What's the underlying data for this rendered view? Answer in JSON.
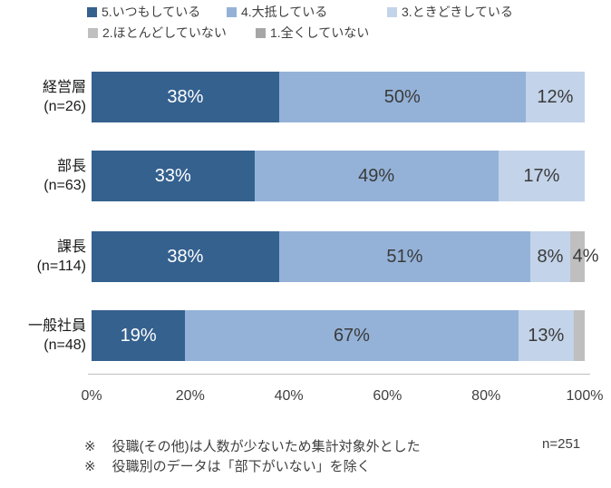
{
  "colors": {
    "s5": "#35618F",
    "s4": "#94B2D8",
    "s3": "#C3D3E9",
    "s2": "#BFBFBF",
    "s1": "#A6A6A6",
    "label_light": "#FFFFFF",
    "label_dark": "#3A3A3A",
    "axis_line": "#BFBFBF",
    "text": "#404040"
  },
  "legend": {
    "rows": [
      [
        {
          "key": "s5",
          "label": "5.いつもしている"
        },
        {
          "key": "s4",
          "label": "4.大抵している"
        },
        {
          "key": "s3",
          "label": "3.ときどきしている"
        }
      ],
      [
        {
          "key": "s2",
          "label": "2.ほとんどしていない"
        },
        {
          "key": "s1",
          "label": "1.全くしていない"
        }
      ]
    ]
  },
  "chart_data": {
    "type": "bar",
    "orientation": "horizontal-stacked",
    "xlim": [
      0,
      100
    ],
    "x_ticks": [
      "0%",
      "20%",
      "40%",
      "60%",
      "80%",
      "100%"
    ],
    "series_names": [
      "5.いつもしている",
      "4.大抵している",
      "3.ときどきしている",
      "2.ほとんどしていない",
      "1.全くしていない"
    ],
    "rows": [
      {
        "category": "経営層",
        "n_label": "(n=26)",
        "segments": [
          {
            "series": "5.いつもしている",
            "key": "s5",
            "value": 38,
            "label": "38%",
            "width": 38,
            "text": "light"
          },
          {
            "series": "4.大抵している",
            "key": "s4",
            "value": 50,
            "label": "50%",
            "width": 50,
            "text": "dark"
          },
          {
            "series": "3.ときどきしている",
            "key": "s3",
            "value": 12,
            "label": "12%",
            "width": 12,
            "text": "dark"
          }
        ]
      },
      {
        "category": "部長",
        "n_label": "(n=63)",
        "segments": [
          {
            "series": "5.いつもしている",
            "key": "s5",
            "value": 33,
            "label": "33%",
            "width": 33,
            "text": "light"
          },
          {
            "series": "4.大抵している",
            "key": "s4",
            "value": 49,
            "label": "49%",
            "width": 49.5,
            "text": "dark"
          },
          {
            "series": "3.ときどきしている",
            "key": "s3",
            "value": 17,
            "label": "17%",
            "width": 17.5,
            "text": "dark"
          }
        ]
      },
      {
        "category": "課長",
        "n_label": "(n=114)",
        "segments": [
          {
            "series": "5.いつもしている",
            "key": "s5",
            "value": 38,
            "label": "38%",
            "width": 38,
            "text": "light"
          },
          {
            "series": "4.大抵している",
            "key": "s4",
            "value": 51,
            "label": "51%",
            "width": 51,
            "text": "dark"
          },
          {
            "series": "3.ときどきしている",
            "key": "s3",
            "value": 8,
            "label": "8%",
            "width": 8,
            "text": "dark"
          },
          {
            "series": "2.ほとんどしていない",
            "key": "s2",
            "value": 4,
            "label": "4%",
            "width": 3,
            "text": "dark",
            "label_outside": true
          }
        ]
      },
      {
        "category": "一般社員",
        "n_label": "(n=48)",
        "segments": [
          {
            "series": "5.いつもしている",
            "key": "s5",
            "value": 19,
            "label": "19%",
            "width": 19,
            "text": "light"
          },
          {
            "series": "4.大抵している",
            "key": "s4",
            "value": 67,
            "label": "67%",
            "width": 67.5,
            "text": "dark"
          },
          {
            "series": "3.ときどきしている",
            "key": "s3",
            "value": 13,
            "label": "13%",
            "width": 11.3,
            "text": "dark"
          },
          {
            "series": "2.ほとんどしていない",
            "key": "s2",
            "value": 2,
            "label": "",
            "width": 2.2,
            "text": "dark"
          }
        ]
      }
    ]
  },
  "footnote_marker": "※",
  "footnotes": [
    "役職(その他)は人数が少ないため集計対象外とした",
    "役職別のデータは「部下がいない」を除く"
  ],
  "sample_size": "n=251"
}
